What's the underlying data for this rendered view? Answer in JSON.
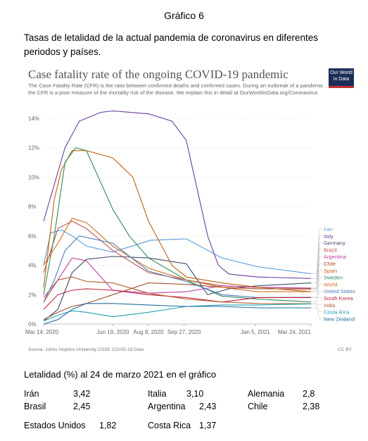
{
  "heading": "Gráfico 6",
  "intro": "Tasas de letalidad de la actual pandemia de coronavirus en diferentes periodos y países.",
  "owid": {
    "line1": "Our World",
    "line2": "in Data"
  },
  "colors": {
    "grid": "#dddddd",
    "axis": "#888888"
  },
  "chart_data": {
    "type": "line",
    "title": "Case fatality rate of the ongoing COVID-19 pandemic",
    "subtitle": "The Case Fatality Rate (CFR) is the ratio between confirmed deaths and confirmed cases. During an outbreak of a pandemic the CFR is a poor measure of the mortality risk of the disease. We explain this in detail at OurWorldInData.org/Coronavirus",
    "x_ticks": [
      "Mar 14, 2020",
      "Jun 19, 2020",
      "Aug 8, 2020",
      "Sep 27, 2020",
      "Jan 5, 2021",
      "Mar 24, 2021"
    ],
    "x_tick_days": [
      0,
      97,
      147,
      197,
      297,
      375
    ],
    "y_ticks": [
      "0%",
      "2%",
      "4%",
      "6%",
      "8%",
      "10%",
      "12%",
      "14%"
    ],
    "ylim": [
      0,
      15
    ],
    "source": "Source: Johns Hopkins University CSSE COVID-19 Data",
    "license": "CC BY",
    "series": [
      {
        "name": "Iran",
        "color": "#5b9bd5",
        "points": [
          [
            0,
            4.0
          ],
          [
            10,
            6.2
          ],
          [
            25,
            6.4
          ],
          [
            40,
            6.0
          ],
          [
            60,
            5.3
          ],
          [
            97,
            4.9
          ],
          [
            150,
            5.7
          ],
          [
            200,
            5.8
          ],
          [
            250,
            4.5
          ],
          [
            300,
            3.9
          ],
          [
            375,
            3.42
          ]
        ]
      },
      {
        "name": "Italy",
        "color": "#6b3fa0",
        "points": [
          [
            0,
            7.0
          ],
          [
            15,
            9.5
          ],
          [
            30,
            12.0
          ],
          [
            50,
            13.8
          ],
          [
            80,
            14.4
          ],
          [
            97,
            14.5
          ],
          [
            147,
            14.3
          ],
          [
            180,
            13.8
          ],
          [
            200,
            12.5
          ],
          [
            230,
            6.0
          ],
          [
            245,
            4.0
          ],
          [
            260,
            3.4
          ],
          [
            300,
            3.2
          ],
          [
            375,
            3.1
          ]
        ]
      },
      {
        "name": "Germany",
        "color": "#3b4c6b",
        "points": [
          [
            0,
            0.2
          ],
          [
            20,
            1.0
          ],
          [
            40,
            3.5
          ],
          [
            60,
            4.4
          ],
          [
            97,
            4.6
          ],
          [
            147,
            4.5
          ],
          [
            200,
            4.1
          ],
          [
            230,
            2.0
          ],
          [
            260,
            2.4
          ],
          [
            300,
            2.6
          ],
          [
            375,
            2.8
          ]
        ]
      },
      {
        "name": "Brazil",
        "color": "#c0504d",
        "points": [
          [
            0,
            3.5
          ],
          [
            20,
            6.5
          ],
          [
            40,
            7.0
          ],
          [
            60,
            6.5
          ],
          [
            97,
            5.0
          ],
          [
            147,
            3.5
          ],
          [
            200,
            3.0
          ],
          [
            250,
            2.6
          ],
          [
            300,
            2.5
          ],
          [
            375,
            2.45
          ]
        ]
      },
      {
        "name": "Argentina",
        "color": "#c040a0",
        "points": [
          [
            0,
            1.8
          ],
          [
            20,
            3.0
          ],
          [
            40,
            4.5
          ],
          [
            60,
            4.3
          ],
          [
            97,
            2.3
          ],
          [
            147,
            2.1
          ],
          [
            200,
            2.2
          ],
          [
            250,
            2.6
          ],
          [
            300,
            2.5
          ],
          [
            375,
            2.43
          ]
        ]
      },
      {
        "name": "Chile",
        "color": "#a0522d",
        "points": [
          [
            0,
            0.3
          ],
          [
            20,
            0.8
          ],
          [
            40,
            1.2
          ],
          [
            60,
            1.4
          ],
          [
            97,
            2.0
          ],
          [
            147,
            2.8
          ],
          [
            200,
            2.7
          ],
          [
            250,
            2.5
          ],
          [
            300,
            2.4
          ],
          [
            375,
            2.38
          ]
        ]
      },
      {
        "name": "Spain",
        "color": "#c06010",
        "points": [
          [
            0,
            2.5
          ],
          [
            15,
            8.5
          ],
          [
            25,
            10.5
          ],
          [
            40,
            11.8
          ],
          [
            60,
            11.8
          ],
          [
            97,
            11.3
          ],
          [
            125,
            10.0
          ],
          [
            147,
            7.0
          ],
          [
            180,
            4.0
          ],
          [
            200,
            3.2
          ],
          [
            250,
            2.8
          ],
          [
            300,
            2.5
          ],
          [
            375,
            2.2
          ]
        ]
      },
      {
        "name": "Sweden",
        "color": "#2e8b57",
        "points": [
          [
            0,
            2.0
          ],
          [
            15,
            6.0
          ],
          [
            30,
            11.0
          ],
          [
            45,
            12.0
          ],
          [
            60,
            11.8
          ],
          [
            97,
            7.8
          ],
          [
            120,
            6.0
          ],
          [
            147,
            4.5
          ],
          [
            200,
            3.0
          ],
          [
            250,
            1.9
          ],
          [
            300,
            1.7
          ],
          [
            375,
            1.5
          ]
        ]
      },
      {
        "name": "World",
        "color": "#d07020",
        "points": [
          [
            0,
            4.0
          ],
          [
            20,
            5.5
          ],
          [
            40,
            7.2
          ],
          [
            60,
            6.9
          ],
          [
            97,
            5.3
          ],
          [
            147,
            3.8
          ],
          [
            200,
            3.0
          ],
          [
            250,
            2.5
          ],
          [
            300,
            2.2
          ],
          [
            375,
            2.2
          ]
        ]
      },
      {
        "name": "United States",
        "color": "#4a7db8",
        "points": [
          [
            0,
            1.5
          ],
          [
            15,
            3.0
          ],
          [
            30,
            5.0
          ],
          [
            50,
            6.0
          ],
          [
            97,
            5.5
          ],
          [
            147,
            3.6
          ],
          [
            200,
            2.9
          ],
          [
            250,
            2.0
          ],
          [
            300,
            1.8
          ],
          [
            375,
            1.82
          ]
        ]
      },
      {
        "name": "South Korea",
        "color": "#c02040",
        "points": [
          [
            0,
            1.0
          ],
          [
            20,
            2.0
          ],
          [
            40,
            2.3
          ],
          [
            60,
            2.4
          ],
          [
            97,
            2.3
          ],
          [
            147,
            2.0
          ],
          [
            200,
            1.8
          ],
          [
            250,
            1.5
          ],
          [
            300,
            1.8
          ],
          [
            375,
            1.8
          ]
        ]
      },
      {
        "name": "India",
        "color": "#b06030",
        "points": [
          [
            0,
            1.5
          ],
          [
            20,
            3.0
          ],
          [
            40,
            3.2
          ],
          [
            60,
            2.9
          ],
          [
            97,
            2.8
          ],
          [
            147,
            2.1
          ],
          [
            200,
            1.7
          ],
          [
            250,
            1.5
          ],
          [
            300,
            1.4
          ],
          [
            375,
            1.38
          ]
        ]
      },
      {
        "name": "Costa Rica",
        "color": "#20a0b0",
        "points": [
          [
            0,
            0.2
          ],
          [
            20,
            0.6
          ],
          [
            40,
            0.9
          ],
          [
            60,
            0.8
          ],
          [
            97,
            0.5
          ],
          [
            147,
            0.8
          ],
          [
            200,
            1.2
          ],
          [
            250,
            1.3
          ],
          [
            300,
            1.3
          ],
          [
            375,
            1.37
          ]
        ]
      },
      {
        "name": "New Zealand",
        "color": "#2070a0",
        "points": [
          [
            0,
            0.0
          ],
          [
            20,
            0.3
          ],
          [
            40,
            1.0
          ],
          [
            60,
            1.4
          ],
          [
            97,
            1.4
          ],
          [
            147,
            1.3
          ],
          [
            200,
            1.2
          ],
          [
            250,
            1.2
          ],
          [
            300,
            1.1
          ],
          [
            375,
            1.1
          ]
        ]
      }
    ]
  },
  "footer": {
    "heading": "Letalidad (%) al 24 de marzo 2021 en el gráfico",
    "rows": [
      [
        {
          "country": "Irán",
          "value": "3,42"
        },
        {
          "country": "Italia",
          "value": "3,10"
        },
        {
          "country": "Alemania",
          "value": "2,8"
        }
      ],
      [
        {
          "country": "Brasil",
          "value": "2,45"
        },
        {
          "country": "Argentina",
          "value": "2,43"
        },
        {
          "country": "Chile",
          "value": "2,38"
        }
      ],
      [
        {
          "country": "Estados Unidos",
          "value": "1,82"
        },
        {
          "country": "Costa Rica",
          "value": "1,37"
        }
      ]
    ]
  }
}
